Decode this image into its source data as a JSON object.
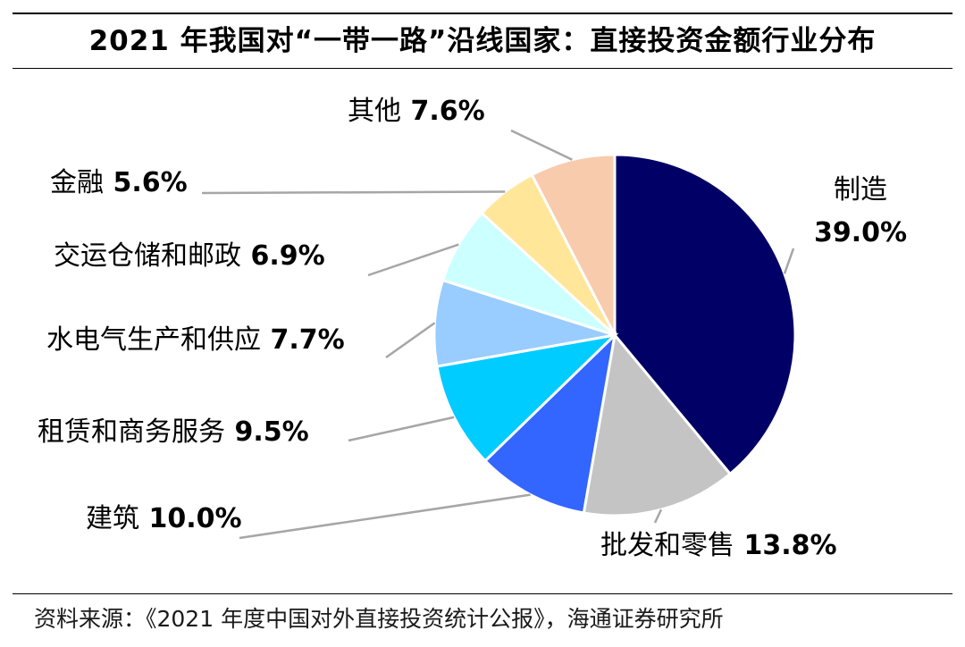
{
  "title": "2021 年我国对“一带一路”沿线国家：直接投资金额行业分布",
  "source": "资料来源：《2021 年度中国对外直接投资统计公报》，海通证券研究所",
  "chart_data": {
    "type": "pie",
    "title": "2021 年我国对“一带一路”沿线国家：直接投资金额行业分布",
    "start": "12 o'clock",
    "direction": "clockwise",
    "slices": [
      {
        "label": "制造",
        "value": 39.0,
        "display": "39.0%",
        "color": "#000066"
      },
      {
        "label": "批发和零售",
        "value": 13.8,
        "display": "13.8%",
        "color": "#C4C4C4"
      },
      {
        "label": "建筑",
        "value": 10.0,
        "display": "10.0%",
        "color": "#3366FF"
      },
      {
        "label": "租赁和商务服务",
        "value": 9.5,
        "display": "9.5%",
        "color": "#00CCFF"
      },
      {
        "label": "水电气生产和供应",
        "value": 7.7,
        "display": "7.7%",
        "color": "#99CCFF"
      },
      {
        "label": "交运仓储和邮政",
        "value": 6.9,
        "display": "6.9%",
        "color": "#CCFFFF"
      },
      {
        "label": "金融",
        "value": 5.6,
        "display": "5.6%",
        "color": "#FFE699"
      },
      {
        "label": "其他",
        "value": 7.6,
        "display": "7.6%",
        "color": "#F8CBAD"
      }
    ]
  }
}
